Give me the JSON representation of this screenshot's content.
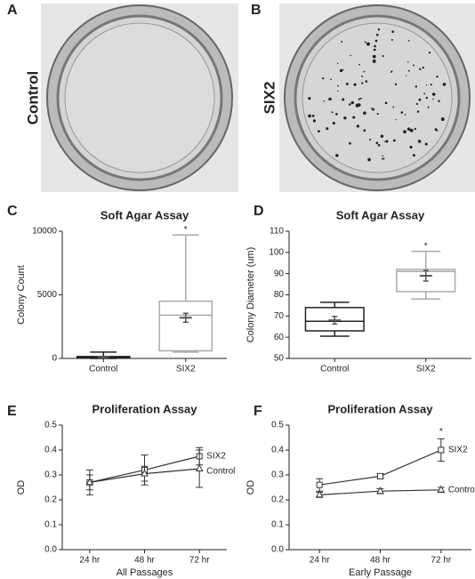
{
  "images": [
    {
      "panel_label": "A",
      "label": "Control"
    },
    {
      "panel_label": "B",
      "label": "SIX2"
    }
  ],
  "chart_data": [
    {
      "type": "box",
      "panel_label": "C",
      "title": "Soft Agar Assay",
      "y_label": "Colony Count",
      "categories": [
        "Control",
        "SIX2"
      ],
      "boxes": [
        {
          "min": 0,
          "q1": 50,
          "median": 100,
          "q3": 150,
          "max": 500,
          "mean": 100,
          "mean_err": 60
        },
        {
          "min": 500,
          "q1": 600,
          "median": 3400,
          "q3": 4500,
          "max": 9700,
          "mean": 3200,
          "mean_err": 350
        }
      ],
      "colors": [
        "#222222",
        "#aaaaaa"
      ],
      "ylim": [
        0,
        10000
      ],
      "yticks": [
        0,
        5000,
        10000
      ],
      "annotations": [
        {
          "text": "*",
          "x": "SIX2"
        }
      ]
    },
    {
      "type": "box",
      "panel_label": "D",
      "title": "Soft Agar Assay",
      "y_label": "Colony Diameter (um)",
      "categories": [
        "Control",
        "SIX2"
      ],
      "boxes": [
        {
          "min": 60.5,
          "q1": 63,
          "median": 67.5,
          "q3": 74,
          "max": 76.5,
          "mean": 68,
          "mean_err": 1.8
        },
        {
          "min": 78,
          "q1": 81.5,
          "median": 91,
          "q3": 92,
          "max": 100.5,
          "mean": 89,
          "mean_err": 2.5
        }
      ],
      "colors": [
        "#222222",
        "#aaaaaa"
      ],
      "ylim": [
        50,
        110
      ],
      "yticks": [
        50,
        60,
        70,
        80,
        90,
        100,
        110
      ],
      "annotations": [
        {
          "text": "*",
          "x": "SIX2"
        }
      ]
    },
    {
      "type": "line",
      "panel_label": "E",
      "title": "Proliferation Assay",
      "x_label": "All Passages",
      "y_label": "OD",
      "categories": [
        "24 hr",
        "48 hr",
        "72 hr"
      ],
      "series": [
        {
          "name": "SIX2",
          "marker": "square",
          "color": "#333333",
          "values": [
            0.27,
            0.32,
            0.375
          ],
          "errors": [
            0.05,
            0.06,
            0.035
          ]
        },
        {
          "name": "Control",
          "marker": "triangle",
          "color": "#333333",
          "values": [
            0.27,
            0.305,
            0.325
          ],
          "errors": [
            0.03,
            0.03,
            0.075
          ]
        }
      ],
      "ylim": [
        0,
        0.5
      ],
      "yticks": [
        {
          "value": 0,
          "label": "0.0"
        },
        0.1,
        0.2,
        0.3,
        0.4,
        0.5
      ]
    },
    {
      "type": "line",
      "panel_label": "F",
      "title": "Proliferation Assay",
      "x_label": "Early Passage",
      "y_label": "OD",
      "categories": [
        "24 hr",
        "48 hr",
        "72 hr"
      ],
      "series": [
        {
          "name": "SIX2",
          "marker": "square",
          "color": "#333333",
          "values": [
            0.26,
            0.295,
            0.4
          ],
          "errors": [
            0.025,
            0.01,
            0.045
          ]
        },
        {
          "name": "Control",
          "marker": "triangle",
          "color": "#333333",
          "values": [
            0.22,
            0.235,
            0.24
          ],
          "errors": [
            0.01,
            0.01,
            0.01
          ]
        }
      ],
      "ylim": [
        0,
        0.5
      ],
      "yticks": [
        {
          "value": 0,
          "label": "0.0"
        },
        0.1,
        0.2,
        0.3,
        0.4,
        0.5
      ],
      "annotations": [
        {
          "text": "*",
          "x": "72 hr"
        }
      ]
    }
  ]
}
